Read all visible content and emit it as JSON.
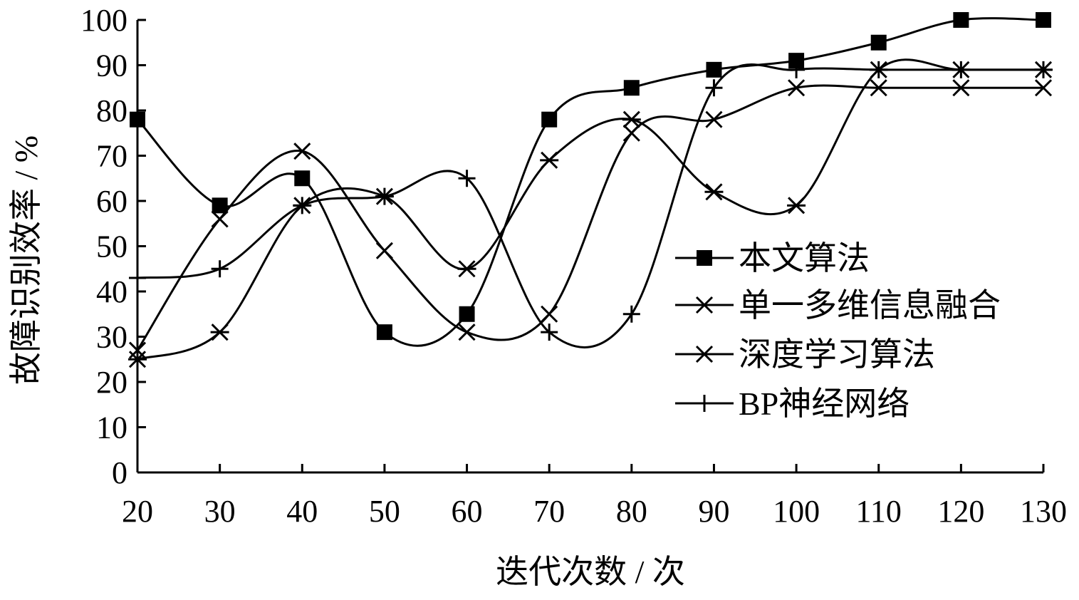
{
  "chart_data": {
    "type": "line",
    "title": "",
    "xlabel": "迭代次数 / 次",
    "ylabel": "故障识别效率 / %",
    "x": [
      20,
      30,
      40,
      50,
      60,
      70,
      80,
      90,
      100,
      110,
      120,
      130
    ],
    "xlim": [
      20,
      130
    ],
    "ylim": [
      0,
      100
    ],
    "yticks": [
      0,
      10,
      20,
      30,
      40,
      50,
      60,
      70,
      80,
      90,
      100
    ],
    "grid": false,
    "legend_position": "right",
    "series": [
      {
        "name": "本文算法",
        "marker": "square",
        "values": [
          78,
          59,
          65,
          31,
          35,
          78,
          85,
          89,
          91,
          95,
          100,
          100
        ]
      },
      {
        "name": "单一多维信息融合",
        "marker": "asterisk",
        "values": [
          25,
          31,
          59,
          61,
          45,
          69,
          78,
          62,
          59,
          89,
          89,
          89
        ]
      },
      {
        "name": "深度学习算法",
        "marker": "x",
        "values": [
          27,
          56,
          71,
          49,
          31,
          35,
          75,
          78,
          85,
          85,
          85,
          85
        ]
      },
      {
        "name": "BP神经网络",
        "marker": "plus",
        "values": [
          43,
          45,
          59,
          61,
          65,
          31,
          35,
          85,
          89,
          89,
          89,
          89
        ]
      }
    ]
  }
}
